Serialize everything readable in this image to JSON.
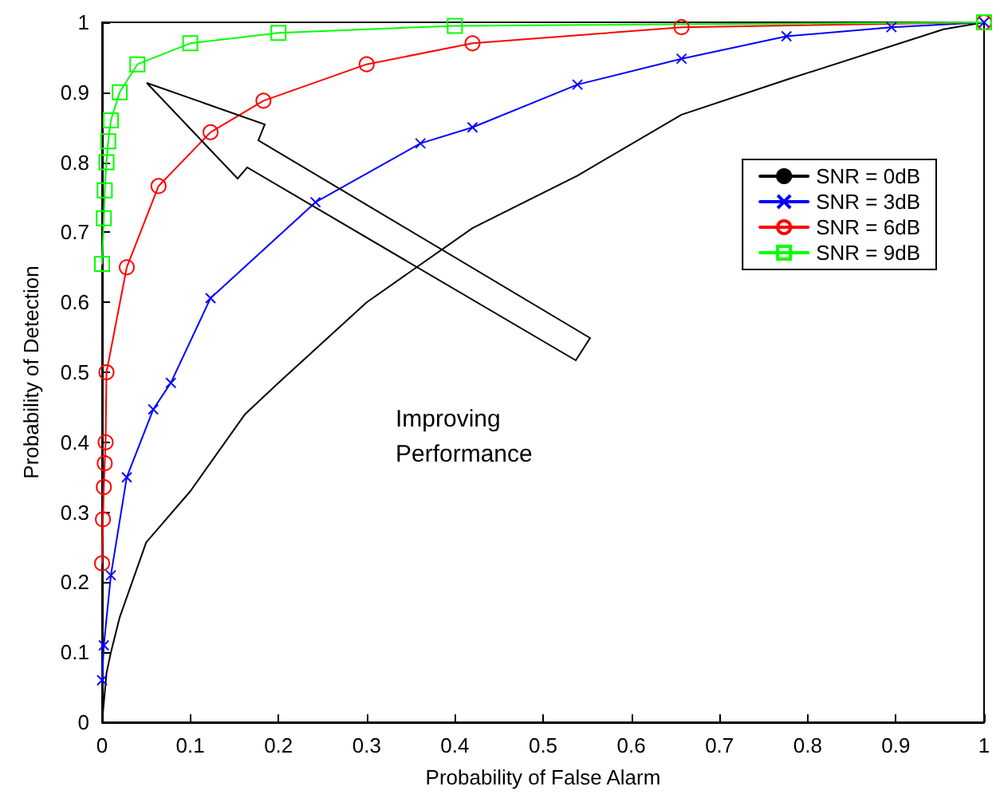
{
  "chart_data": {
    "type": "line",
    "xlabel": "Probability of False Alarm",
    "ylabel": "Probability of Detection",
    "annotations": [
      "Improving\nPerformance"
    ],
    "series": [
      {
        "name": "SNR = 0dB",
        "color": "#000000",
        "marker": "none",
        "x": [
          0,
          0.005,
          0.01,
          0.02,
          0.05,
          0.1,
          0.162,
          0.2,
          0.3,
          0.42,
          0.539,
          0.657,
          0.776,
          0.954,
          1
        ],
        "values": [
          0,
          0.07,
          0.1,
          0.15,
          0.257,
          0.33,
          0.44,
          0.485,
          0.6,
          0.706,
          0.781,
          0.868,
          0.918,
          0.99,
          1
        ]
      },
      {
        "name": "SNR = 3dB",
        "color": "#0000ff",
        "marker": "cross",
        "x": [
          0,
          0.002,
          0.01,
          0.028,
          0.058,
          0.078,
          0.123,
          0.242,
          0.361,
          0.42,
          0.539,
          0.657,
          0.776,
          0.895,
          1
        ],
        "values": [
          0.06,
          0.11,
          0.21,
          0.35,
          0.447,
          0.485,
          0.606,
          0.743,
          0.827,
          0.85,
          0.911,
          0.948,
          0.98,
          0.993,
          1
        ]
      },
      {
        "name": "SNR = 6dB",
        "color": "#ff0000",
        "marker": "circle",
        "x": [
          0,
          0.001,
          0.002,
          0.003,
          0.004,
          0.005,
          0.028,
          0.064,
          0.123,
          0.183,
          0.3,
          0.42,
          0.657,
          1
        ],
        "values": [
          0.227,
          0.29,
          0.336,
          0.37,
          0.4,
          0.5,
          0.65,
          0.766,
          0.843,
          0.888,
          0.94,
          0.97,
          0.993,
          1
        ]
      },
      {
        "name": "SNR = 9dB",
        "color": "#00ff00",
        "marker": "square",
        "x": [
          0,
          0.002,
          0.003,
          0.005,
          0.007,
          0.01,
          0.02,
          0.04,
          0.1,
          0.2,
          0.4,
          1
        ],
        "values": [
          0.655,
          0.72,
          0.76,
          0.8,
          0.83,
          0.86,
          0.9,
          0.94,
          0.97,
          0.985,
          0.995,
          1
        ]
      }
    ],
    "xlim": [
      0,
      1
    ],
    "xticks": [
      0,
      0.1,
      0.2,
      0.3,
      0.4,
      0.5,
      0.6,
      0.7,
      0.8,
      0.9,
      1
    ],
    "ylim": [
      0,
      1
    ],
    "yticks": [
      0,
      0.1,
      0.2,
      0.3,
      0.4,
      0.5,
      0.6,
      0.7,
      0.8,
      0.9,
      1
    ],
    "grid": false,
    "legend": "right",
    "line_style": "solid"
  }
}
